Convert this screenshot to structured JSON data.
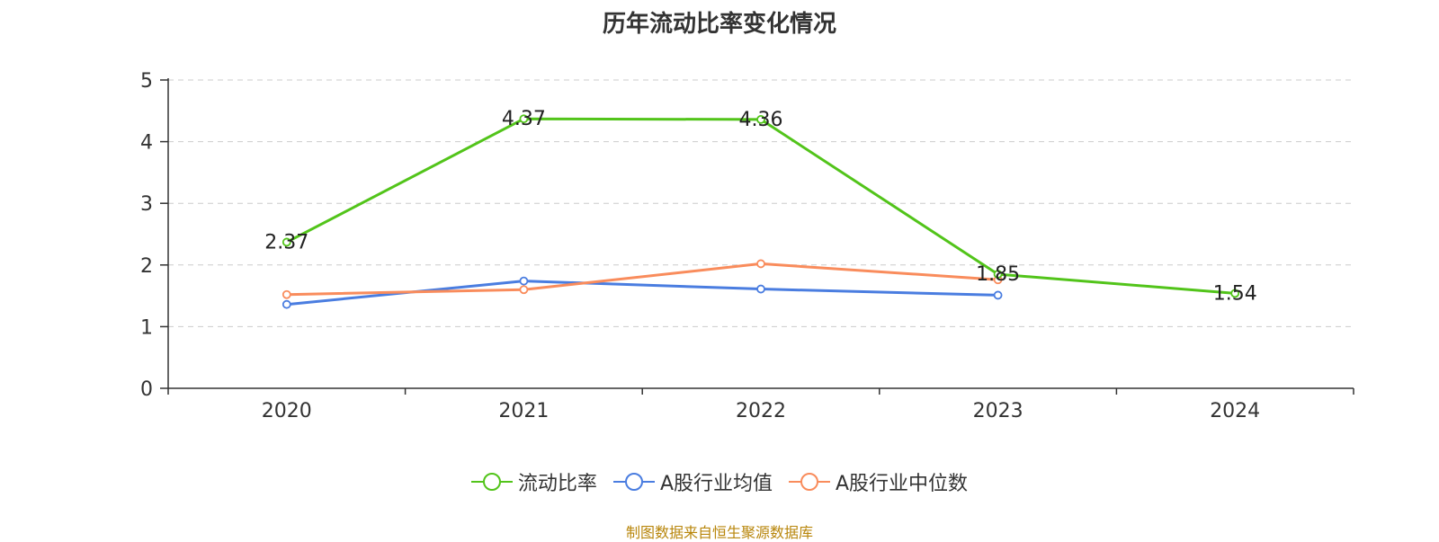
{
  "chart_data": {
    "type": "line",
    "title": "历年流动比率变化情况",
    "categories": [
      "2020",
      "2021",
      "2022",
      "2023",
      "2024"
    ],
    "yticks": [
      "0",
      "1",
      "2",
      "3",
      "4",
      "5"
    ],
    "ylim": [
      0,
      5
    ],
    "grid": true,
    "legend_position": "bottom",
    "series": [
      {
        "name": "流动比率",
        "color": "#52c41a",
        "values": [
          2.37,
          4.37,
          4.36,
          1.85,
          1.54
        ],
        "labels": [
          "2.37",
          "4.37",
          "4.36",
          "1.85",
          "1.54"
        ]
      },
      {
        "name": "A股行业均值",
        "color": "#4a7de0",
        "values": [
          1.36,
          1.74,
          1.61,
          1.51,
          null
        ]
      },
      {
        "name": "A股行业中位数",
        "color": "#f98c5c",
        "values": [
          1.52,
          1.6,
          2.02,
          1.76,
          null
        ]
      }
    ],
    "source": "制图数据来自恒生聚源数据库"
  }
}
